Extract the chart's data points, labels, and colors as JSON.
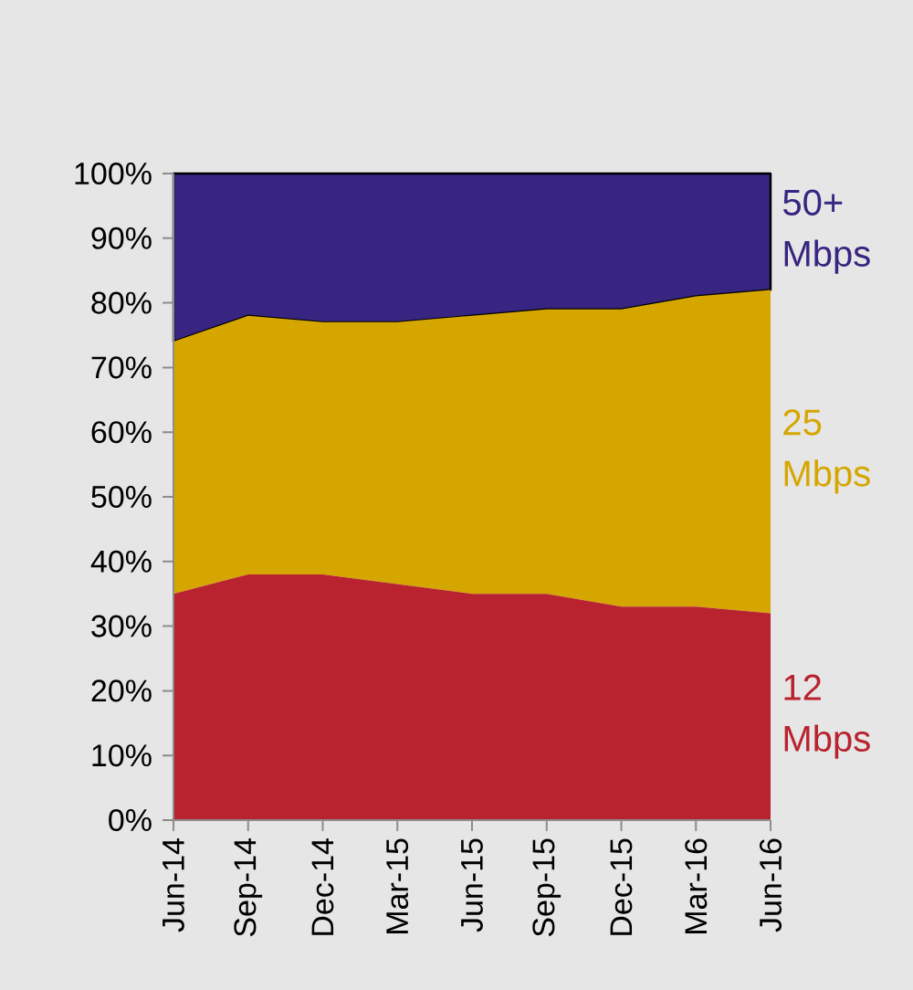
{
  "chart_data": {
    "type": "area",
    "stacked": true,
    "categories": [
      "Jun-14",
      "Sep-14",
      "Dec-14",
      "Mar-15",
      "Jun-15",
      "Sep-15",
      "Dec-15",
      "Mar-16",
      "Jun-16"
    ],
    "series": [
      {
        "name": "12 Mbps",
        "color": "#b8232f",
        "values": [
          35,
          38,
          38,
          36.5,
          35,
          35,
          33,
          33,
          32
        ]
      },
      {
        "name": "25 Mbps",
        "color": "#d6a600",
        "values": [
          39,
          40,
          39,
          40.5,
          43,
          44,
          46,
          48,
          50
        ]
      },
      {
        "name": "50+ Mbps",
        "color": "#372581",
        "values": [
          26,
          22,
          23,
          23,
          22,
          21,
          21,
          19,
          18
        ]
      }
    ],
    "ylim": [
      0,
      100
    ],
    "yticks": [
      {
        "value": 0,
        "label": "0%"
      },
      {
        "value": 10,
        "label": "10%"
      },
      {
        "value": 20,
        "label": "20%"
      },
      {
        "value": 30,
        "label": "30%"
      },
      {
        "value": 40,
        "label": "40%"
      },
      {
        "value": 50,
        "label": "50%"
      },
      {
        "value": 60,
        "label": "60%"
      },
      {
        "value": 70,
        "label": "70%"
      },
      {
        "value": 80,
        "label": "80%"
      },
      {
        "value": 90,
        "label": "90%"
      },
      {
        "value": 100,
        "label": "100%"
      }
    ]
  }
}
